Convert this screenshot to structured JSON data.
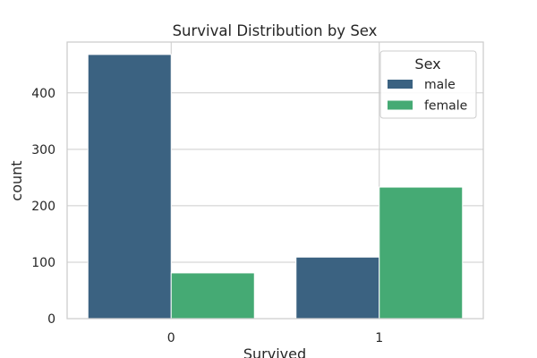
{
  "chart_data": {
    "type": "bar",
    "title": "Survival Distribution by Sex",
    "xlabel": "Survived",
    "ylabel": "count",
    "categories": [
      "0",
      "1"
    ],
    "series": [
      {
        "name": "male",
        "values": [
          468,
          109
        ],
        "color": "#3b6281"
      },
      {
        "name": "female",
        "values": [
          81,
          233
        ],
        "color": "#45aa74"
      }
    ],
    "ylim": [
      0,
      490
    ],
    "yticks": [
      0,
      100,
      200,
      300,
      400
    ],
    "grid": true,
    "legend": {
      "title": "Sex",
      "placement": "top-right"
    }
  }
}
